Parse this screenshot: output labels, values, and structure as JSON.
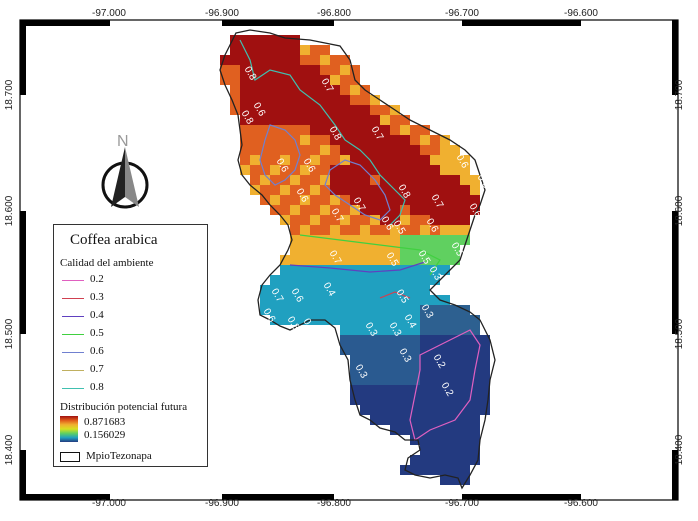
{
  "map": {
    "x_ticks": [
      "-97.000",
      "-96.900",
      "-96.800",
      "-96.700",
      "-96.600"
    ],
    "y_ticks": [
      "18.700",
      "18.600",
      "18.500",
      "18.400"
    ],
    "north_label": "N",
    "contour_labels": [
      "0.8",
      "0.6",
      "0.7",
      "0.6",
      "0.8",
      "0.7",
      "0.6",
      "0.7",
      "0.6",
      "0.8",
      "0.6",
      "0.6",
      "0.7",
      "0.8",
      "0.6",
      "0.6",
      "0.7",
      "0.6",
      "0.5",
      "0.5",
      "0.5",
      "0.5",
      "0.4",
      "0.7",
      "0.6",
      "0.7",
      "0.6",
      "0.8",
      "0.5",
      "0.5",
      "0.3",
      "0.4",
      "0.3",
      "0.3",
      "0.3",
      "0.2",
      "0.3",
      "0.3",
      "0.2"
    ]
  },
  "legend": {
    "title": "Coffea arabica",
    "habitat_title": "Calidad del ambiente",
    "habitat_classes": [
      {
        "value": "0.2",
        "color": "#e060c0"
      },
      {
        "value": "0.3",
        "color": "#d04050"
      },
      {
        "value": "0.4",
        "color": "#6040c0"
      },
      {
        "value": "0.5",
        "color": "#40d040"
      },
      {
        "value": "0.6",
        "color": "#7080d0"
      },
      {
        "value": "0.7",
        "color": "#c0b060"
      },
      {
        "value": "0.8",
        "color": "#40c0b0"
      }
    ],
    "distribution_title": "Distribución potencial futura",
    "ramp_max": "0.871683",
    "ramp_min": "0.156029",
    "boundary_label": "MpioTezonapa"
  },
  "colors": {
    "high": "#a01010",
    "mid_high": "#e06020",
    "mid": "#f0b030",
    "mid_low": "#60d060",
    "low": "#20a0c0",
    "lowest": "#233a80"
  }
}
